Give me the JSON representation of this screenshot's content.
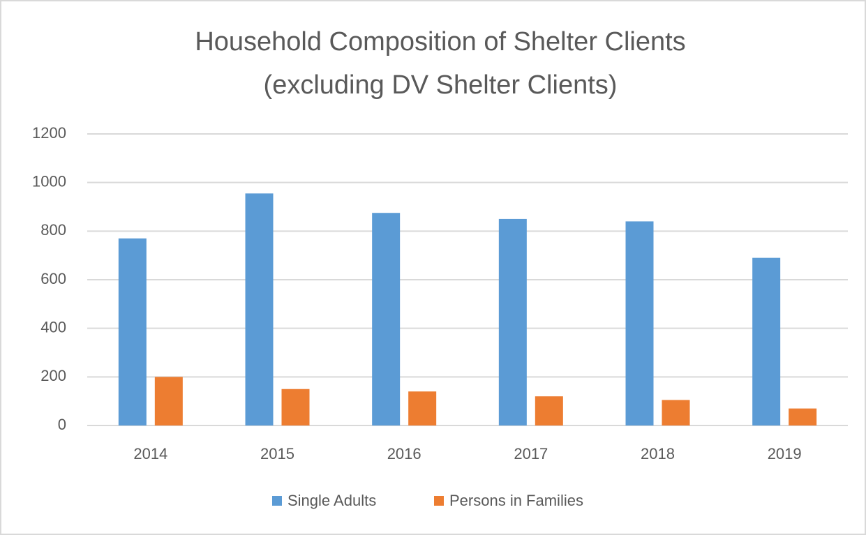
{
  "chart_data": {
    "type": "bar",
    "title": [
      "Household Composition of Shelter Clients",
      "(excluding DV Shelter Clients)"
    ],
    "categories": [
      "2014",
      "2015",
      "2016",
      "2017",
      "2018",
      "2019"
    ],
    "series": [
      {
        "name": "Single Adults",
        "color": "#5b9bd5",
        "values": [
          770,
          955,
          875,
          850,
          840,
          690
        ]
      },
      {
        "name": "Persons in Families",
        "color": "#ed7d31",
        "values": [
          200,
          150,
          140,
          120,
          105,
          70
        ]
      }
    ],
    "ylim": [
      0,
      1200
    ],
    "yticks": [
      0,
      200,
      400,
      600,
      800,
      1000,
      1200
    ],
    "grid": true,
    "legend": "bottom"
  }
}
